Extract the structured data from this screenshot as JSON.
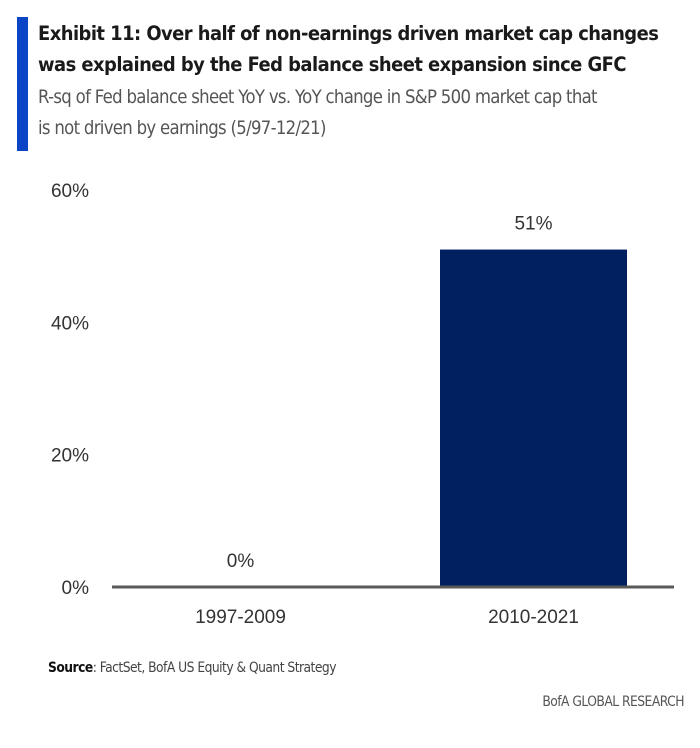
{
  "header": {
    "title_line1": "Exhibit 11: Over half of non-earnings driven market cap changes",
    "title_line2": "was explained by the Fed balance sheet expansion since GFC",
    "subtitle_line1": "R-sq of Fed balance sheet YoY vs. YoY change in S&P 500 market cap that",
    "subtitle_line2": "is not driven by earnings (5/97-12/21)",
    "accent_color": "#0b45c7"
  },
  "chart_data": {
    "type": "bar",
    "title": "Exhibit 11: Over half of non-earnings driven market cap changes was explained by the Fed balance sheet expansion since GFC",
    "subtitle": "R-sq of Fed balance sheet YoY vs. YoY change in S&P 500 market cap that is not driven by earnings (5/97-12/21)",
    "categories": [
      "1997-2009",
      "2010-2021"
    ],
    "values": [
      0,
      51
    ],
    "data_labels": [
      "0%",
      "51%"
    ],
    "xlabel": "",
    "ylabel": "",
    "ylim": [
      0,
      60
    ],
    "yticks": [
      0,
      20,
      40,
      60
    ],
    "ytick_labels": [
      "0%",
      "20%",
      "40%",
      "60%"
    ],
    "grid": false,
    "legend": "none",
    "bar_color": "#002060",
    "axis_color": "#595959"
  },
  "footer": {
    "source_label": "Source",
    "source_text": ": FactSet, BofA US Equity & Quant Strategy",
    "brand": "BofA GLOBAL RESEARCH"
  }
}
